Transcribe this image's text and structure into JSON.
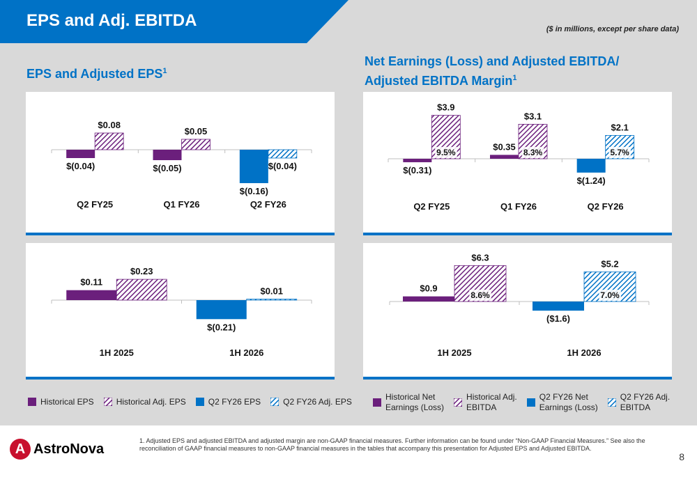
{
  "header": {
    "title": "EPS and Adj. EBITDA",
    "units_note": "($ in millions, except per share data)"
  },
  "sections": {
    "eps_title": "EPS and Adjusted EPS",
    "eps_title_sup": "1",
    "ebitda_title_line1": "Net Earnings (Loss) and Adjusted EBITDA/",
    "ebitda_title_line2": "Adjusted EBITDA Margin",
    "ebitda_title_sup": "1"
  },
  "colors": {
    "historical": "#6b1f7c",
    "q2fy26": "#0072c6",
    "brand_blue": "#0072c6"
  },
  "chart_data": [
    {
      "id": "eps_quarterly",
      "type": "bar",
      "categories": [
        "Q2 FY25",
        "Q1 FY26",
        "Q2 FY26"
      ],
      "series": [
        {
          "name": "EPS",
          "values": [
            -0.04,
            -0.05,
            -0.16
          ],
          "labels": [
            "$(0.04)",
            "$(0.05)",
            "$(0.16)"
          ],
          "styles": [
            "hist-solid",
            "hist-solid",
            "q2-solid"
          ]
        },
        {
          "name": "Adj. EPS",
          "values": [
            0.08,
            0.05,
            -0.04
          ],
          "labels": [
            "$0.08",
            "$0.05",
            "$(0.04)"
          ],
          "styles": [
            "hist-hatch",
            "hist-hatch",
            "q2-hatch"
          ]
        }
      ]
    },
    {
      "id": "eps_halfyear",
      "type": "bar",
      "categories": [
        "1H 2025",
        "1H 2026"
      ],
      "series": [
        {
          "name": "EPS",
          "values": [
            0.11,
            -0.21
          ],
          "labels": [
            "$0.11",
            "$(0.21)"
          ],
          "styles": [
            "hist-solid",
            "q2-solid"
          ]
        },
        {
          "name": "Adj. EPS",
          "values": [
            0.23,
            0.01
          ],
          "labels": [
            "$0.23",
            "$0.01"
          ],
          "styles": [
            "hist-hatch",
            "q2-hatch"
          ]
        }
      ]
    },
    {
      "id": "ebitda_quarterly",
      "type": "bar",
      "categories": [
        "Q2 FY25",
        "Q1 FY26",
        "Q2 FY26"
      ],
      "series": [
        {
          "name": "Net Earnings (Loss)",
          "values": [
            -0.31,
            0.35,
            -1.24
          ],
          "labels": [
            "$(0.31)",
            "$0.35",
            "$(1.24)"
          ],
          "styles": [
            "hist-solid",
            "hist-solid",
            "q2-solid"
          ]
        },
        {
          "name": "Adjusted EBITDA",
          "values": [
            3.9,
            3.1,
            2.1
          ],
          "labels": [
            "$3.9",
            "$3.1",
            "$2.1"
          ],
          "styles": [
            "hist-hatch",
            "hist-hatch",
            "q2-hatch"
          ]
        }
      ],
      "margins": [
        "9.5%",
        "8.3%",
        "5.7%"
      ]
    },
    {
      "id": "ebitda_halfyear",
      "type": "bar",
      "categories": [
        "1H 2025",
        "1H 2026"
      ],
      "series": [
        {
          "name": "Net Earnings (Loss)",
          "values": [
            0.9,
            -1.6
          ],
          "labels": [
            "$0.9",
            "($1.6)"
          ],
          "styles": [
            "hist-solid",
            "q2-solid"
          ]
        },
        {
          "name": "Adjusted EBITDA",
          "values": [
            6.3,
            5.2
          ],
          "labels": [
            "$6.3",
            "$5.2"
          ],
          "styles": [
            "hist-hatch",
            "q2-hatch"
          ]
        }
      ],
      "margins": [
        "8.6%",
        "7.0%"
      ]
    }
  ],
  "legend_eps": [
    {
      "label": "Historical EPS",
      "style": "hist-solid"
    },
    {
      "label": "Historical Adj. EPS",
      "style": "hist-hatch"
    },
    {
      "label": "Q2 FY26 EPS",
      "style": "q2-solid"
    },
    {
      "label": "Q2 FY26 Adj. EPS",
      "style": "q2-hatch"
    }
  ],
  "legend_ebitda": [
    {
      "line1": "Historical Net",
      "line2": "Earnings (Loss)",
      "style": "hist-solid"
    },
    {
      "line1": "Historical Adj.",
      "line2": "EBITDA",
      "style": "hist-hatch"
    },
    {
      "line1": "Q2 FY26 Net",
      "line2": "Earnings (Loss)",
      "style": "q2-solid"
    },
    {
      "line1": "Q2 FY26 Adj.",
      "line2": "EBITDA",
      "style": "q2-hatch"
    }
  ],
  "footer": {
    "logo_text": "AstroNova",
    "footnote": "1. Adjusted EPS and adjusted EBITDA and adjusted margin are non-GAAP financial measures. Further information can be found under “Non-GAAP Financial Measures.” See also the reconciliation of GAAP financial measures to non-GAAP financial measures in the tables that accompany this presentation for Adjusted EPS and Adjusted EBITDA.",
    "page_number": "8"
  }
}
